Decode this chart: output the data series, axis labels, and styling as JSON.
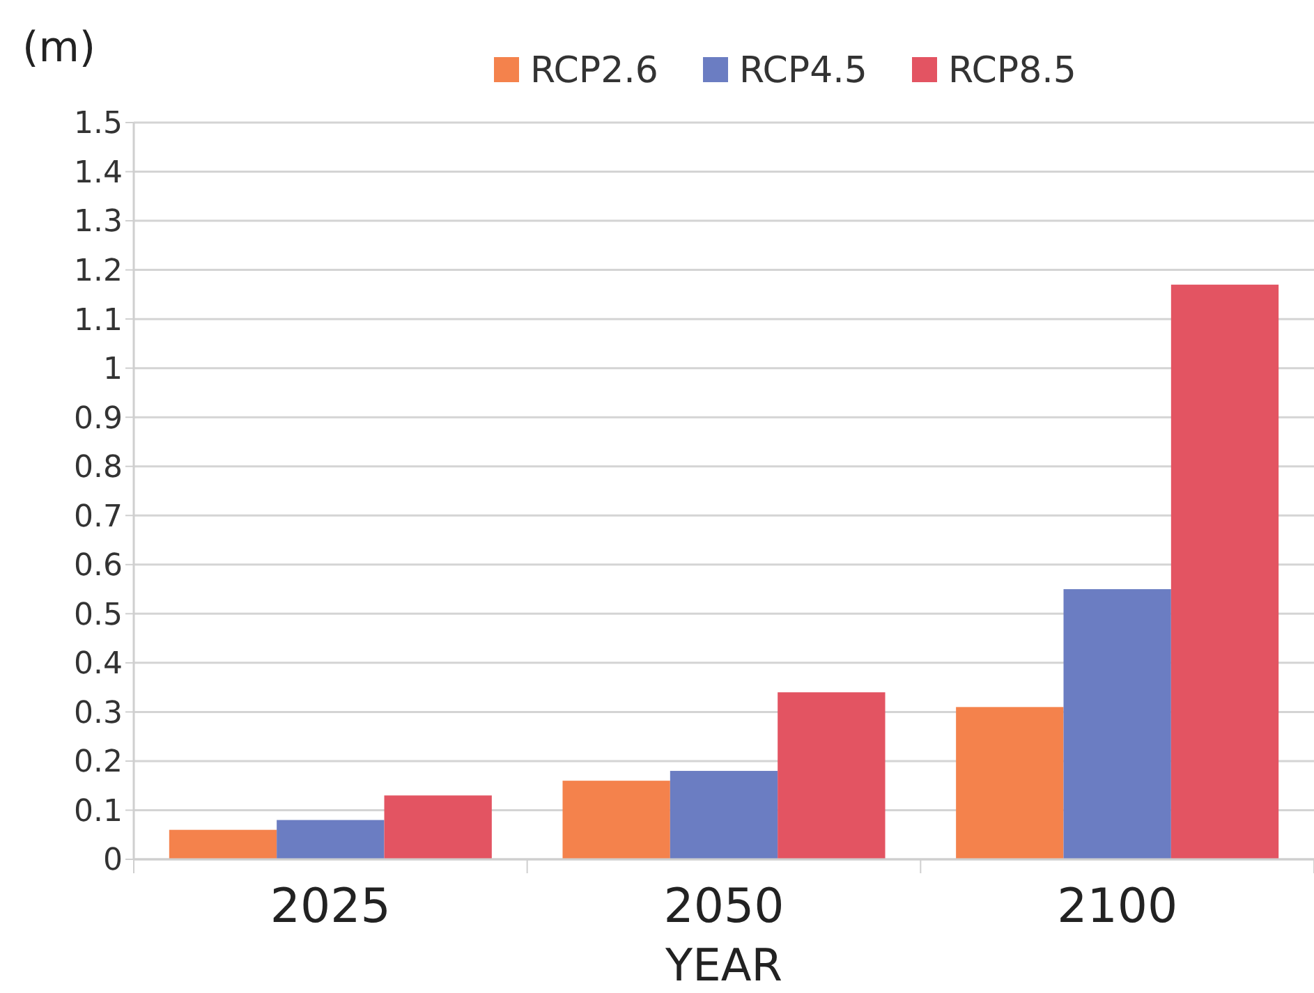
{
  "chart_data": {
    "type": "bar",
    "ylabel": "(m)",
    "xlabel": "YEAR",
    "categories": [
      "2025",
      "2050",
      "2100"
    ],
    "series": [
      {
        "name": "RCP2.6",
        "color": "#f4824c",
        "values": [
          0.06,
          0.16,
          0.31
        ]
      },
      {
        "name": "RCP4.5",
        "color": "#6b7dc2",
        "values": [
          0.08,
          0.18,
          0.55
        ]
      },
      {
        "name": "RCP8.5",
        "color": "#e35462",
        "values": [
          0.13,
          0.34,
          1.17
        ]
      }
    ],
    "ylim": [
      0,
      1.5
    ],
    "yticks": [
      0,
      0.1,
      0.2,
      0.3,
      0.4,
      0.5,
      0.6,
      0.7,
      0.8,
      0.9,
      1,
      1.1,
      1.2,
      1.3,
      1.4,
      1.5
    ],
    "grid": "y",
    "legend": "top"
  }
}
